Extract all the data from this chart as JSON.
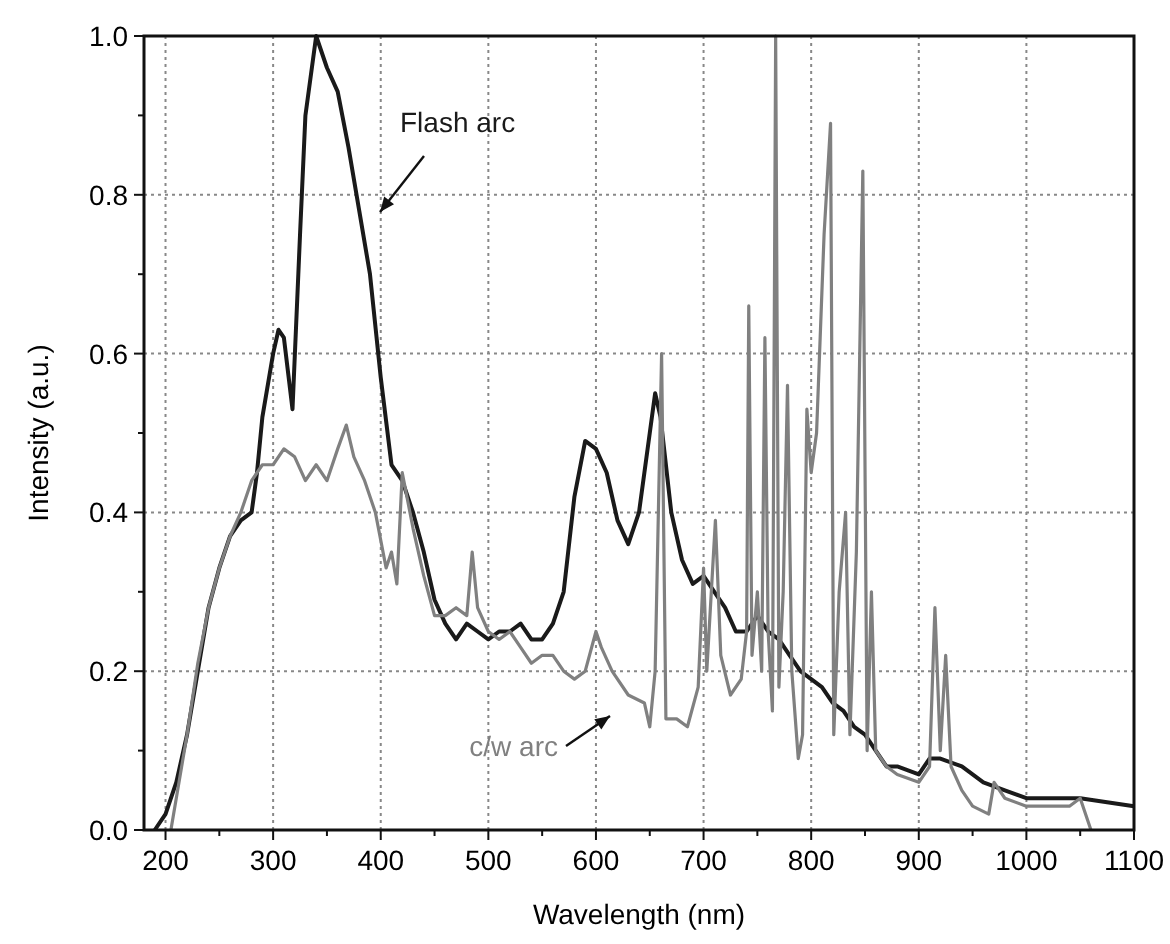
{
  "chart_data": {
    "type": "line",
    "xlabel": "Wavelength (nm)",
    "ylabel": "Intensity (a.u.)",
    "xlim": [
      180,
      1100
    ],
    "ylim": [
      0,
      1.0
    ],
    "xticks": [
      200,
      300,
      400,
      500,
      600,
      700,
      800,
      900,
      1000,
      1100
    ],
    "yticks": [
      {
        "value": 0,
        "label": "0.0"
      },
      {
        "value": 0.2,
        "label": "0.2"
      },
      {
        "value": 0.4,
        "label": "0.4"
      },
      {
        "value": 0.6,
        "label": "0.6"
      },
      {
        "value": 0.8,
        "label": "0.8"
      },
      {
        "value": 1,
        "label": "1.0"
      }
    ],
    "grid": true,
    "line_style": "solid",
    "marker": "none",
    "annotations": [
      "Flash arc",
      "c/w arc"
    ],
    "series": [
      {
        "color": "#1a1a1a",
        "x": [
          190,
          200,
          210,
          220,
          230,
          240,
          250,
          260,
          270,
          280,
          285,
          290,
          300,
          305,
          310,
          318,
          325,
          330,
          340,
          350,
          360,
          370,
          380,
          390,
          400,
          410,
          420,
          430,
          440,
          450,
          460,
          470,
          480,
          490,
          500,
          510,
          520,
          530,
          540,
          550,
          560,
          570,
          580,
          590,
          600,
          610,
          620,
          630,
          640,
          650,
          655,
          660,
          670,
          680,
          690,
          700,
          710,
          720,
          730,
          740,
          750,
          760,
          770,
          780,
          790,
          800,
          810,
          820,
          830,
          840,
          850,
          860,
          870,
          880,
          900,
          910,
          920,
          940,
          960,
          980,
          1000,
          1050,
          1100
        ],
        "values": [
          0,
          0.02,
          0.06,
          0.12,
          0.2,
          0.28,
          0.33,
          0.37,
          0.39,
          0.4,
          0.45,
          0.52,
          0.6,
          0.63,
          0.62,
          0.53,
          0.75,
          0.9,
          1.0,
          0.96,
          0.93,
          0.86,
          0.78,
          0.7,
          0.57,
          0.46,
          0.44,
          0.4,
          0.35,
          0.29,
          0.26,
          0.24,
          0.26,
          0.25,
          0.24,
          0.25,
          0.25,
          0.26,
          0.24,
          0.24,
          0.26,
          0.3,
          0.42,
          0.49,
          0.48,
          0.45,
          0.39,
          0.36,
          0.4,
          0.5,
          0.55,
          0.52,
          0.4,
          0.34,
          0.31,
          0.32,
          0.3,
          0.28,
          0.25,
          0.25,
          0.27,
          0.25,
          0.24,
          0.22,
          0.2,
          0.19,
          0.18,
          0.16,
          0.15,
          0.13,
          0.12,
          0.1,
          0.08,
          0.08,
          0.07,
          0.09,
          0.09,
          0.08,
          0.06,
          0.05,
          0.04,
          0.04,
          0.03
        ]
      },
      {
        "color": "#808080",
        "x": [
          205,
          210,
          220,
          230,
          240,
          250,
          260,
          270,
          280,
          290,
          300,
          310,
          320,
          330,
          340,
          350,
          360,
          368,
          375,
          385,
          395,
          405,
          410,
          415,
          420,
          430,
          440,
          450,
          460,
          470,
          480,
          485,
          490,
          500,
          510,
          520,
          530,
          540,
          550,
          560,
          570,
          580,
          590,
          600,
          605,
          615,
          630,
          645,
          650,
          655,
          661,
          665,
          675,
          685,
          695,
          700,
          703,
          711,
          716,
          725,
          735,
          740,
          742,
          745,
          750,
          754,
          757,
          760,
          764,
          767,
          770,
          774,
          778,
          782,
          788,
          792,
          796,
          800,
          805,
          812,
          818,
          821,
          826,
          832,
          836,
          842,
          848,
          852,
          856,
          860,
          870,
          880,
          900,
          910,
          915,
          920,
          925,
          930,
          940,
          950,
          965,
          970,
          980,
          1000,
          1040,
          1050,
          1060
        ],
        "values": [
          0,
          0.04,
          0.12,
          0.21,
          0.28,
          0.33,
          0.37,
          0.4,
          0.44,
          0.46,
          0.46,
          0.48,
          0.47,
          0.44,
          0.46,
          0.44,
          0.48,
          0.51,
          0.47,
          0.44,
          0.4,
          0.33,
          0.35,
          0.31,
          0.45,
          0.38,
          0.32,
          0.27,
          0.27,
          0.28,
          0.27,
          0.35,
          0.28,
          0.25,
          0.24,
          0.25,
          0.23,
          0.21,
          0.22,
          0.22,
          0.2,
          0.19,
          0.2,
          0.25,
          0.23,
          0.2,
          0.17,
          0.16,
          0.13,
          0.2,
          0.6,
          0.14,
          0.14,
          0.13,
          0.18,
          0.33,
          0.2,
          0.39,
          0.22,
          0.17,
          0.19,
          0.25,
          0.66,
          0.22,
          0.3,
          0.2,
          0.62,
          0.25,
          0.15,
          1.0,
          0.18,
          0.3,
          0.56,
          0.2,
          0.09,
          0.12,
          0.53,
          0.45,
          0.5,
          0.75,
          0.89,
          0.12,
          0.3,
          0.4,
          0.12,
          0.35,
          0.83,
          0.1,
          0.3,
          0.1,
          0.08,
          0.07,
          0.06,
          0.08,
          0.28,
          0.1,
          0.22,
          0.08,
          0.05,
          0.03,
          0.02,
          0.06,
          0.04,
          0.03,
          0.03,
          0.04,
          0
        ]
      }
    ]
  }
}
